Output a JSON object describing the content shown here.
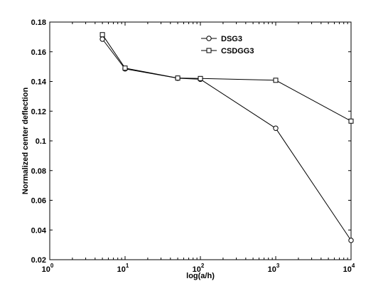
{
  "chart_data": {
    "type": "line",
    "xscale": "log",
    "xlabel": "log(a/h)",
    "ylabel": "Normalized center deflection",
    "xlim": [
      1,
      10000
    ],
    "ylim": [
      0.02,
      0.18
    ],
    "x_ticks": [
      {
        "value": 1,
        "base": "10",
        "exp": "0"
      },
      {
        "value": 10,
        "base": "10",
        "exp": "1"
      },
      {
        "value": 100,
        "base": "10",
        "exp": "2"
      },
      {
        "value": 1000,
        "base": "10",
        "exp": "3"
      },
      {
        "value": 10000,
        "base": "10",
        "exp": "4"
      }
    ],
    "y_ticks": [
      {
        "value": 0.02,
        "label": "0.02"
      },
      {
        "value": 0.04,
        "label": "0.04"
      },
      {
        "value": 0.06,
        "label": "0.06"
      },
      {
        "value": 0.08,
        "label": "0.08"
      },
      {
        "value": 0.1,
        "label": "0.1"
      },
      {
        "value": 0.12,
        "label": "0.12"
      },
      {
        "value": 0.14,
        "label": "0.14"
      },
      {
        "value": 0.16,
        "label": "0.16"
      },
      {
        "value": 0.18,
        "label": "0.18"
      }
    ],
    "grid": false,
    "legend_position": "top-center",
    "series": [
      {
        "name": "DSG3",
        "marker": "circle",
        "color": "#000000",
        "x": [
          5,
          10,
          50,
          100,
          1000,
          10000
        ],
        "y": [
          0.1685,
          0.1485,
          0.1422,
          0.1415,
          0.1085,
          0.033
        ]
      },
      {
        "name": "CSDGG3",
        "marker": "square",
        "color": "#000000",
        "x": [
          5,
          10,
          50,
          100,
          1000,
          10000
        ],
        "y": [
          0.1715,
          0.149,
          0.1423,
          0.142,
          0.1408,
          0.1133
        ]
      }
    ]
  }
}
